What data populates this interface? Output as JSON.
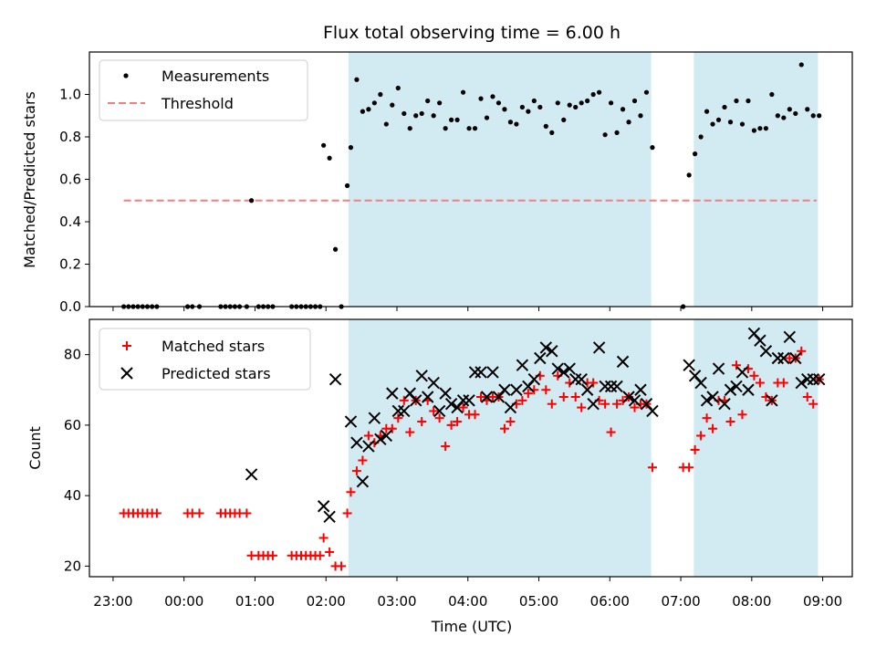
{
  "chart_data": [
    {
      "type": "scatter",
      "title": "Flux total observing time = 6.00 h",
      "xlabel": "",
      "ylabel": "Matched/Predicted stars",
      "xlim": [
        "22:40",
        "09:25"
      ],
      "ylim": [
        0,
        1.2
      ],
      "yticks": [
        0.0,
        0.2,
        0.4,
        0.6,
        0.8,
        1.0
      ],
      "ytick_labels": [
        "0.0",
        "0.2",
        "0.4",
        "0.6",
        "0.8",
        "1.0"
      ],
      "legend": {
        "location": "upper-left",
        "entries": [
          "Measurements",
          "Threshold"
        ]
      },
      "threshold": {
        "name": "Threshold",
        "value": 0.5,
        "x_start": "23:09",
        "x_end": "08:55",
        "color": "#f08080"
      },
      "shaded_intervals": [
        {
          "start": "02:19",
          "end": "06:35",
          "color": "#add8e6"
        },
        {
          "start": "07:11",
          "end": "08:56",
          "color": "#add8e6"
        }
      ],
      "series": [
        {
          "name": "Measurements",
          "color": "#000000",
          "x": [
            "23:09",
            "23:13",
            "23:17",
            "23:21",
            "23:25",
            "23:29",
            "23:33",
            "23:37",
            "00:03",
            "00:07",
            "00:13",
            "00:31",
            "00:35",
            "00:39",
            "00:43",
            "00:47",
            "00:53",
            "00:57",
            "01:03",
            "01:07",
            "01:11",
            "01:15",
            "01:31",
            "01:35",
            "01:39",
            "01:43",
            "01:47",
            "01:51",
            "01:55",
            "01:58",
            "02:03",
            "02:08",
            "02:13",
            "02:18",
            "02:21",
            "02:26",
            "02:31",
            "02:36",
            "02:41",
            "02:46",
            "02:51",
            "02:56",
            "03:01",
            "03:06",
            "03:11",
            "03:16",
            "03:21",
            "03:26",
            "03:31",
            "03:36",
            "03:41",
            "03:46",
            "03:51",
            "03:56",
            "04:01",
            "04:06",
            "04:11",
            "04:16",
            "04:21",
            "04:26",
            "04:31",
            "04:36",
            "04:41",
            "04:46",
            "04:51",
            "04:56",
            "05:01",
            "05:06",
            "05:11",
            "05:16",
            "05:21",
            "05:26",
            "05:31",
            "05:36",
            "05:41",
            "05:46",
            "05:51",
            "05:56",
            "06:01",
            "06:06",
            "06:11",
            "06:16",
            "06:21",
            "06:26",
            "06:31",
            "06:36",
            "07:02",
            "07:07",
            "07:12",
            "07:17",
            "07:22",
            "07:27",
            "07:32",
            "07:37",
            "07:42",
            "07:47",
            "07:52",
            "07:57",
            "08:02",
            "08:07",
            "08:12",
            "08:17",
            "08:22",
            "08:27",
            "08:32",
            "08:37",
            "08:42",
            "08:47",
            "08:52",
            "08:57"
          ],
          "y": [
            0,
            0,
            0,
            0,
            0,
            0,
            0,
            0,
            0,
            0,
            0,
            0,
            0,
            0,
            0,
            0,
            0,
            0.5,
            0,
            0,
            0,
            0,
            0,
            0,
            0,
            0,
            0,
            0,
            0,
            0.76,
            0.7,
            0.27,
            0,
            0.57,
            0.75,
            1.07,
            0.92,
            0.93,
            0.96,
            1.0,
            0.86,
            0.95,
            1.03,
            0.91,
            0.84,
            0.9,
            0.91,
            0.97,
            0.9,
            0.96,
            0.84,
            0.88,
            0.88,
            1.01,
            0.84,
            0.84,
            0.98,
            0.89,
            0.99,
            0.96,
            0.93,
            0.87,
            0.86,
            0.94,
            0.92,
            0.97,
            0.94,
            0.85,
            0.82,
            0.96,
            0.88,
            0.95,
            0.94,
            0.96,
            0.97,
            1.0,
            1.01,
            0.81,
            0.96,
            0.82,
            0.93,
            0.87,
            0.97,
            0.9,
            1.01,
            0.75,
            0.0,
            0.62,
            0.72,
            0.8,
            0.92,
            0.86,
            0.88,
            0.94,
            0.87,
            0.97,
            0.86,
            0.97,
            0.83,
            0.84,
            0.84,
            1.0,
            0.9,
            0.89,
            0.93,
            0.91,
            1.14,
            0.93,
            0.9,
            0.9
          ]
        }
      ]
    },
    {
      "type": "scatter",
      "title": "",
      "xlabel": "Time (UTC)",
      "ylabel": "Count",
      "xlim": [
        "22:40",
        "09:25"
      ],
      "ylim": [
        17,
        90
      ],
      "yticks": [
        20,
        40,
        60,
        80
      ],
      "ytick_labels": [
        "20",
        "40",
        "60",
        "80"
      ],
      "xticks": [
        "23:00",
        "00:00",
        "01:00",
        "02:00",
        "03:00",
        "04:00",
        "05:00",
        "06:00",
        "07:00",
        "08:00",
        "09:00"
      ],
      "legend": {
        "location": "upper-left",
        "entries": [
          "Matched stars",
          "Predicted stars"
        ]
      },
      "shaded_intervals": [
        {
          "start": "02:19",
          "end": "06:35",
          "color": "#add8e6"
        },
        {
          "start": "07:11",
          "end": "08:56",
          "color": "#add8e6"
        }
      ],
      "series": [
        {
          "name": "Matched stars",
          "marker": "plus",
          "color": "#ff0000",
          "x": [
            "23:09",
            "23:13",
            "23:17",
            "23:21",
            "23:25",
            "23:29",
            "23:33",
            "23:37",
            "00:03",
            "00:07",
            "00:13",
            "00:31",
            "00:35",
            "00:39",
            "00:43",
            "00:47",
            "00:53",
            "00:57",
            "01:03",
            "01:07",
            "01:11",
            "01:15",
            "01:31",
            "01:35",
            "01:39",
            "01:43",
            "01:47",
            "01:51",
            "01:55",
            "01:58",
            "02:03",
            "02:08",
            "02:13",
            "02:18",
            "02:21",
            "02:26",
            "02:31",
            "02:36",
            "02:41",
            "02:46",
            "02:51",
            "02:56",
            "03:01",
            "03:06",
            "03:11",
            "03:16",
            "03:21",
            "03:26",
            "03:31",
            "03:36",
            "03:41",
            "03:46",
            "03:51",
            "03:56",
            "04:01",
            "04:06",
            "04:11",
            "04:16",
            "04:21",
            "04:26",
            "04:31",
            "04:36",
            "04:41",
            "04:46",
            "04:51",
            "04:56",
            "05:01",
            "05:06",
            "05:11",
            "05:16",
            "05:21",
            "05:26",
            "05:31",
            "05:36",
            "05:41",
            "05:46",
            "05:51",
            "05:56",
            "06:01",
            "06:06",
            "06:11",
            "06:16",
            "06:21",
            "06:26",
            "06:31",
            "06:36",
            "07:02",
            "07:07",
            "07:12",
            "07:17",
            "07:22",
            "07:27",
            "07:32",
            "07:37",
            "07:42",
            "07:47",
            "07:52",
            "07:57",
            "08:02",
            "08:07",
            "08:12",
            "08:17",
            "08:22",
            "08:27",
            "08:32",
            "08:37",
            "08:42",
            "08:47",
            "08:52",
            "08:57"
          ],
          "y": [
            35,
            35,
            35,
            35,
            35,
            35,
            35,
            35,
            35,
            35,
            35,
            35,
            35,
            35,
            35,
            35,
            35,
            23,
            23,
            23,
            23,
            23,
            23,
            23,
            23,
            23,
            23,
            23,
            23,
            28,
            24,
            20,
            20,
            35,
            41,
            47,
            50,
            57,
            55,
            57,
            59,
            59,
            62,
            67,
            58,
            67,
            61,
            67,
            64,
            62,
            54,
            60,
            61,
            65,
            63,
            63,
            68,
            67,
            68,
            68,
            59,
            61,
            66,
            67,
            69,
            70,
            74,
            70,
            66,
            74,
            68,
            72,
            68,
            65,
            72,
            72,
            67,
            66,
            58,
            66,
            67,
            68,
            65,
            66,
            66,
            48,
            48,
            48,
            53,
            57,
            62,
            59,
            67,
            67,
            61,
            77,
            63,
            76,
            74,
            72,
            68,
            67,
            72,
            72,
            79,
            79,
            81,
            68,
            66,
            73
          ]
        },
        {
          "name": "Predicted stars",
          "marker": "x",
          "color": "#000000",
          "x": [
            "00:57",
            "01:58",
            "02:03",
            "02:08",
            "02:21",
            "02:26",
            "02:31",
            "02:36",
            "02:41",
            "02:46",
            "02:51",
            "02:56",
            "03:01",
            "03:06",
            "03:11",
            "03:16",
            "03:21",
            "03:26",
            "03:31",
            "03:36",
            "03:41",
            "03:46",
            "03:51",
            "03:56",
            "04:01",
            "04:06",
            "04:11",
            "04:16",
            "04:21",
            "04:26",
            "04:31",
            "04:36",
            "04:41",
            "04:46",
            "04:51",
            "04:56",
            "05:01",
            "05:06",
            "05:11",
            "05:16",
            "05:21",
            "05:26",
            "05:31",
            "05:36",
            "05:41",
            "05:46",
            "05:51",
            "05:56",
            "06:01",
            "06:06",
            "06:11",
            "06:16",
            "06:21",
            "06:26",
            "06:31",
            "06:36",
            "07:07",
            "07:12",
            "07:17",
            "07:22",
            "07:27",
            "07:32",
            "07:37",
            "07:42",
            "07:47",
            "07:52",
            "07:57",
            "08:02",
            "08:07",
            "08:12",
            "08:17",
            "08:22",
            "08:27",
            "08:32",
            "08:37",
            "08:42",
            "08:47",
            "08:52",
            "08:57"
          ],
          "y": [
            46,
            37,
            34,
            73,
            61,
            55,
            44,
            54,
            62,
            56,
            57,
            69,
            64,
            64,
            69,
            67,
            74,
            68,
            72,
            64,
            69,
            66,
            65,
            67,
            67,
            75,
            75,
            68,
            75,
            68,
            70,
            65,
            70,
            77,
            71,
            73,
            79,
            82,
            81,
            76,
            75,
            76,
            73,
            73,
            70,
            66,
            82,
            71,
            71,
            71,
            78,
            68,
            67,
            70,
            66,
            64,
            77,
            74,
            72,
            67,
            68,
            76,
            66,
            70,
            71,
            75,
            70,
            86,
            84,
            81,
            67,
            79,
            79,
            85,
            79,
            72,
            73,
            73,
            73
          ]
        }
      ]
    }
  ]
}
